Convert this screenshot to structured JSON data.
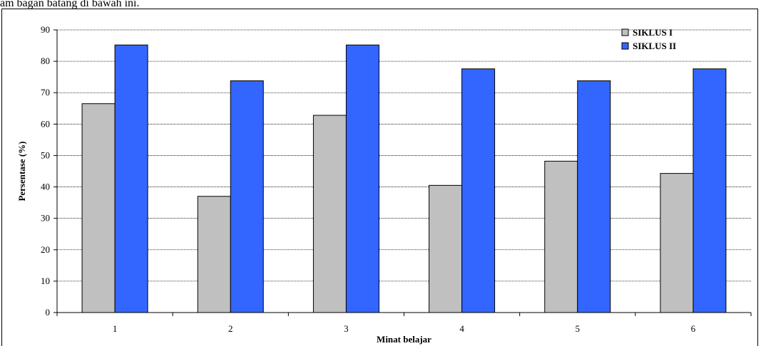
{
  "caption": "am bagan batang di bawah ini.",
  "chart_data": {
    "type": "bar",
    "categories": [
      "1",
      "2",
      "3",
      "4",
      "5",
      "6"
    ],
    "series": [
      {
        "name": "SIKLUS I",
        "color": "#c0c0c0",
        "values": [
          66.5,
          37,
          62.8,
          40.5,
          48.2,
          44.3
        ]
      },
      {
        "name": "SIKLUS II",
        "color": "#3366ff",
        "values": [
          85.2,
          73.8,
          85.2,
          77.6,
          73.8,
          77.6
        ]
      }
    ],
    "xlabel": "Minat belajar",
    "ylabel": "Persentase (%)",
    "ylim": [
      0,
      90
    ],
    "yticks": [
      "0",
      "10",
      "20",
      "30",
      "40",
      "50",
      "60",
      "70",
      "80",
      "90"
    ],
    "grid": true,
    "legend": "top-right"
  }
}
